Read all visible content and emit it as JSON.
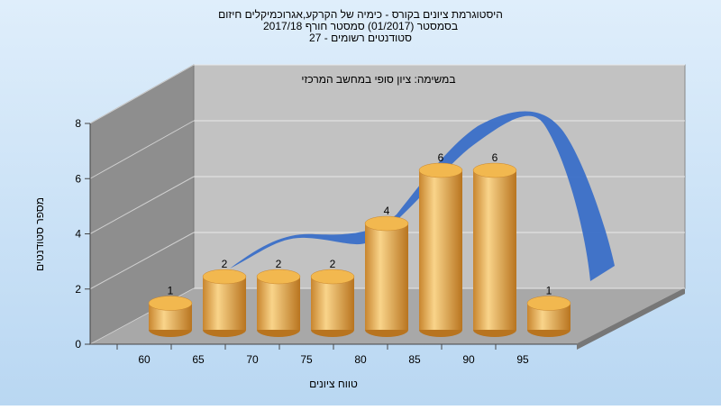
{
  "chart_data": {
    "type": "bar",
    "title": "היסטוגרמת ציונים בקורס - כימיה של הקרקע,אגרוכמיקלים חיזום",
    "subtitle": [
      "בסמסטר  (01/2017)  סמסטר חורף 2017/18",
      "סטודנטים רשומים - 27"
    ],
    "annotation": "במשימה: ציון סופי במחשב המרכזי",
    "x_label": "טווח ציונים",
    "y_label": "מספר סטודנטים",
    "categories": [
      "60",
      "65",
      "70",
      "75",
      "80",
      "85",
      "90",
      "95"
    ],
    "values": [
      1,
      2,
      2,
      2,
      4,
      6,
      6,
      1
    ],
    "color": "#e8a84a",
    "ylim": [
      0,
      8
    ],
    "yticks": [
      0,
      2,
      4,
      6,
      8
    ],
    "grid": true
  }
}
